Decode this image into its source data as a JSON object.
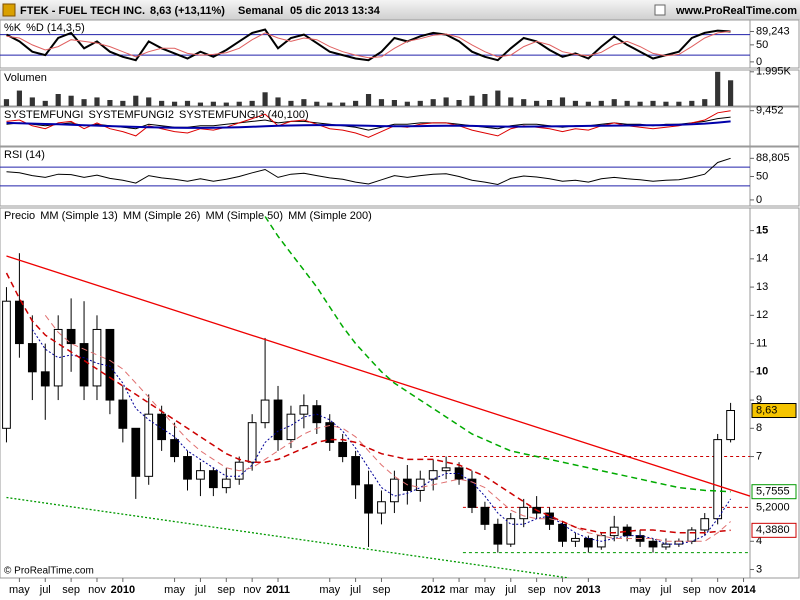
{
  "header": {
    "symbol": "FTEK - FUEL TECH INC.",
    "quote": "8,63 (+13,11%)",
    "period": "Semanal",
    "datetime": "05 dic 2013 13:34",
    "site": "www.ProRealTime.com"
  },
  "footer": "© ProRealTime.com",
  "chart_data": [
    {
      "type": "line",
      "ylim": [
        -18,
        123
      ],
      "yticks": [
        {
          "value": 89.243,
          "label": "89,243"
        },
        50,
        0
      ],
      "hlines": [
        80,
        20
      ],
      "series": [
        {
          "name": "%K",
          "color": "#000000",
          "width": 2,
          "values": [
            80,
            60,
            30,
            20,
            70,
            85,
            40,
            60,
            30,
            15,
            5,
            60,
            40,
            25,
            10,
            30,
            15,
            35,
            60,
            85,
            95,
            40,
            70,
            80,
            55,
            30,
            20,
            10,
            5,
            30,
            70,
            60,
            75,
            85,
            80,
            60,
            30,
            15,
            5,
            40,
            70,
            60,
            35,
            15,
            25,
            10,
            45,
            75,
            50,
            30,
            10,
            20,
            30,
            70,
            85,
            92,
            89.243,
            null
          ]
        },
        {
          "name": "%D (14,3,5)",
          "color": "#e06060",
          "width": 1,
          "values": [
            75,
            70,
            50,
            35,
            45,
            65,
            60,
            55,
            45,
            30,
            15,
            30,
            40,
            40,
            25,
            20,
            22,
            27,
            40,
            65,
            85,
            70,
            60,
            70,
            65,
            45,
            30,
            20,
            12,
            15,
            40,
            60,
            68,
            78,
            82,
            72,
            50,
            30,
            15,
            20,
            45,
            60,
            50,
            30,
            22,
            18,
            28,
            50,
            60,
            45,
            25,
            18,
            22,
            45,
            70,
            85,
            90,
            null
          ]
        }
      ]
    },
    {
      "type": "bar",
      "name": "Volumen",
      "color": "#333333",
      "ylim": [
        0,
        2100
      ],
      "yticks": [
        {
          "value": 1995,
          "label": "1.995K"
        }
      ],
      "values": [
        400,
        900,
        500,
        300,
        700,
        600,
        400,
        500,
        350,
        300,
        600,
        500,
        300,
        250,
        300,
        200,
        250,
        200,
        250,
        300,
        800,
        500,
        300,
        400,
        250,
        200,
        200,
        300,
        700,
        400,
        350,
        250,
        300,
        400,
        500,
        350,
        600,
        700,
        900,
        500,
        400,
        300,
        350,
        500,
        300,
        250,
        300,
        400,
        300,
        250,
        300,
        250,
        250,
        300,
        400,
        1995,
        1500,
        null
      ]
    },
    {
      "type": "line",
      "ylim": [
        -15,
        12
      ],
      "yticks": [
        {
          "value": 9.452,
          "label": "9,452"
        }
      ],
      "series": [
        {
          "name": "SYSTEMFUNGI",
          "color": "#000000",
          "width": 1,
          "values": [
            0,
            1,
            0,
            -1,
            0,
            1,
            -1,
            0,
            -1,
            -2,
            -3,
            0,
            -1,
            -2,
            -2,
            -1,
            -1,
            0,
            1,
            2,
            3,
            1,
            2,
            2,
            1,
            0,
            -1,
            -2,
            -4,
            -2,
            0,
            0,
            1,
            1,
            1,
            0,
            -1,
            -2,
            -3,
            -1,
            0,
            0,
            -1,
            -2,
            -1,
            -1,
            0,
            1,
            0,
            0,
            -1,
            0,
            0,
            1,
            2,
            4,
            5,
            null
          ]
        },
        {
          "name": "SYSTEMFUNGI2",
          "color": "#dd0000",
          "width": 1,
          "values": [
            2,
            3,
            -1,
            -3,
            1,
            2,
            -3,
            1,
            -3,
            -5,
            -8,
            -1,
            -3,
            -5,
            -6,
            -3,
            -4,
            -2,
            1,
            4,
            7,
            -1,
            2,
            3,
            0,
            -3,
            -4,
            -6,
            -9,
            -5,
            -1,
            -2,
            0,
            1,
            1,
            -1,
            -4,
            -6,
            -8,
            -3,
            -1,
            -2,
            -3,
            -5,
            -3,
            -4,
            -1,
            1,
            -1,
            -2,
            -3,
            -2,
            -1,
            1,
            3,
            8,
            9.452,
            null
          ]
        },
        {
          "name": "SYSTEMFUNGI3 (40,100)",
          "color": "#0000aa",
          "width": 2,
          "values": [
            1,
            0.8,
            0.5,
            0.2,
            0,
            -0.3,
            -0.6,
            -0.9,
            -1.2,
            -1.5,
            -1.8,
            -2,
            -2.2,
            -2.4,
            -2.5,
            -2.5,
            -2.4,
            -2.2,
            -2,
            -1.7,
            -1.3,
            -1,
            -0.8,
            -0.6,
            -0.5,
            -0.5,
            -0.6,
            -0.8,
            -1,
            -1.2,
            -1.3,
            -1.3,
            -1.2,
            -1.1,
            -1,
            -1,
            -1.1,
            -1.3,
            -1.5,
            -1.6,
            -1.6,
            -1.5,
            -1.4,
            -1.3,
            -1.2,
            -1.1,
            -1,
            -0.9,
            -0.8,
            -0.7,
            -0.6,
            -0.5,
            -0.3,
            0,
            0.5,
            1.2,
            2,
            null
          ]
        }
      ]
    },
    {
      "type": "line",
      "ylim": [
        -13,
        113
      ],
      "yticks": [
        {
          "value": 88.805,
          "label": "88,805"
        },
        50,
        0
      ],
      "hlines": [
        70,
        30
      ],
      "series": [
        {
          "name": "RSI (14)",
          "color": "#000000",
          "width": 1,
          "values": [
            60,
            58,
            52,
            48,
            55,
            54,
            48,
            53,
            46,
            42,
            36,
            52,
            47,
            44,
            40,
            45,
            40,
            44,
            50,
            58,
            65,
            48,
            55,
            57,
            52,
            47,
            44,
            38,
            34,
            43,
            52,
            48,
            52,
            55,
            56,
            50,
            42,
            38,
            33,
            46,
            51,
            49,
            45,
            40,
            42,
            38,
            45,
            48,
            45,
            43,
            40,
            42,
            43,
            48,
            55,
            80,
            88.805,
            null
          ]
        }
      ]
    },
    {
      "type": "candlestick",
      "ylim": [
        2.7,
        15.8
      ],
      "yticks": [
        3,
        4,
        7,
        8,
        9,
        10,
        11,
        12,
        13,
        14,
        15
      ],
      "categories": [
        null,
        "may",
        null,
        "jul",
        null,
        "sep",
        null,
        "nov",
        null,
        "2010",
        null,
        null,
        null,
        "may",
        null,
        "jul",
        null,
        "sep",
        null,
        "nov",
        null,
        "2011",
        null,
        null,
        null,
        "may",
        null,
        "jul",
        null,
        "sep",
        null,
        null,
        null,
        "2012",
        null,
        "mar",
        null,
        "may",
        null,
        "jul",
        null,
        "sep",
        null,
        "nov",
        null,
        "2013",
        null,
        null,
        null,
        "may",
        null,
        "jul",
        null,
        "sep",
        null,
        "nov",
        null,
        "2014"
      ],
      "candles": {
        "name": "Precio",
        "open": [
          8,
          12.5,
          11,
          10,
          9.5,
          11.5,
          11,
          9.5,
          11.5,
          9,
          8,
          6.3,
          8.5,
          7.6,
          7,
          6.2,
          6.5,
          5.9,
          6.2,
          6.8,
          8.2,
          9,
          7.6,
          8.5,
          8.8,
          8.2,
          7.5,
          7,
          6,
          5,
          5.4,
          6.2,
          5.8,
          6.2,
          6.5,
          6.6,
          6.2,
          5.2,
          4.6,
          3.9,
          4.8,
          5.2,
          5,
          4.6,
          4,
          4.1,
          3.8,
          4.2,
          4.5,
          4.2,
          4,
          3.8,
          3.9,
          4,
          4.4,
          4.8,
          7.6,
          null
        ],
        "high": [
          13,
          14.2,
          12,
          11,
          12,
          12.6,
          12.5,
          12,
          11.5,
          9.5,
          8,
          9.2,
          8.8,
          8.2,
          7.2,
          6.8,
          6.6,
          6.6,
          7,
          8.5,
          11.2,
          9.5,
          8.8,
          9.2,
          9,
          8.5,
          7.8,
          7.2,
          6.5,
          5.8,
          6.5,
          6.7,
          6.5,
          6.9,
          7,
          6.8,
          6.5,
          5.4,
          4.8,
          5,
          5.5,
          5.6,
          5.2,
          4.7,
          4.3,
          4.2,
          4.3,
          4.9,
          4.6,
          4.4,
          4.1,
          4.1,
          4.1,
          4.5,
          5,
          7.8,
          8.9,
          null
        ],
        "low": [
          7.5,
          10.5,
          9,
          8.3,
          9,
          10,
          9,
          9,
          8.5,
          7.5,
          5.5,
          6,
          7.2,
          6.8,
          5.8,
          5.6,
          5.6,
          5.7,
          6,
          6.5,
          8,
          7.2,
          7.3,
          8,
          7.8,
          7.2,
          6.8,
          5.5,
          3.8,
          4.6,
          5,
          5.3,
          5.4,
          5.8,
          6.2,
          6,
          5,
          4.4,
          3.6,
          3.8,
          4.5,
          4.8,
          4.4,
          3.8,
          3.8,
          3.6,
          3.7,
          4,
          4,
          3.8,
          3.6,
          3.7,
          3.8,
          3.9,
          4.2,
          4.6,
          7.5,
          null
        ],
        "close": [
          12.5,
          11,
          10,
          9.5,
          11.5,
          11,
          9.5,
          11.5,
          9,
          8,
          6.3,
          8.5,
          7.6,
          7,
          6.2,
          6.5,
          5.9,
          6.2,
          6.8,
          8.2,
          9,
          7.6,
          8.5,
          8.8,
          8.2,
          7.5,
          7,
          6,
          5,
          5.4,
          6.2,
          5.8,
          6.2,
          6.5,
          6.6,
          6.2,
          5.2,
          4.6,
          3.9,
          4.8,
          5.2,
          5,
          4.6,
          4,
          4.1,
          3.8,
          4.2,
          4.5,
          4.2,
          4,
          3.8,
          3.9,
          4,
          4.4,
          4.8,
          7.6,
          8.63,
          null
        ]
      },
      "series": [
        {
          "name": "MM (Simple 13)",
          "color": "#000099",
          "width": 1,
          "style": "dotted",
          "values": [
            null,
            null,
            11.5,
            10.8,
            10.5,
            10.6,
            10.5,
            10.3,
            10.2,
            9.6,
            8.7,
            8.3,
            8,
            7.7,
            7.2,
            6.9,
            6.6,
            6.3,
            6.3,
            6.7,
            7.5,
            7.9,
            8.1,
            8.4,
            8.5,
            8.3,
            7.9,
            7.3,
            6.6,
            5.9,
            5.6,
            5.7,
            5.9,
            6.2,
            6.4,
            6.4,
            6.1,
            5.6,
            5,
            4.6,
            4.6,
            4.8,
            4.9,
            4.6,
            4.3,
            4.1,
            4,
            4.1,
            4.2,
            4.2,
            4.1,
            3.9,
            3.9,
            4,
            4.2,
            4.8,
            5.5,
            null
          ]
        },
        {
          "name": "MM (Simple 26)",
          "color": "#e07070",
          "width": 1,
          "style": "dashed",
          "values": [
            null,
            null,
            null,
            12,
            11.4,
            11,
            10.8,
            10.6,
            10.4,
            10.1,
            9.6,
            9.1,
            8.6,
            8.1,
            7.6,
            7.2,
            6.9,
            6.6,
            6.5,
            6.6,
            6.9,
            7.2,
            7.5,
            7.8,
            8,
            8.1,
            8,
            7.7,
            7.2,
            6.7,
            6.3,
            6,
            5.9,
            6,
            6.1,
            6.2,
            6.1,
            5.9,
            5.5,
            5.1,
            4.9,
            4.8,
            4.8,
            4.7,
            4.5,
            4.3,
            4.2,
            4.1,
            4.1,
            4.1,
            4.1,
            4,
            4,
            4,
            4,
            4.3,
            4.7,
            null
          ]
        },
        {
          "name": "MM (Simple 50)",
          "color": "#cc0000",
          "width": 1.5,
          "style": "dashed",
          "values": [
            13.5,
            12.6,
            11.8,
            11.3,
            11,
            10.7,
            10.4,
            10.1,
            9.8,
            9.5,
            9.2,
            8.9,
            8.6,
            8.3,
            8,
            7.7,
            7.4,
            7.1,
            6.9,
            6.8,
            6.8,
            6.9,
            7.1,
            7.3,
            7.5,
            7.6,
            7.6,
            7.5,
            7.3,
            7.1,
            7,
            6.9,
            6.9,
            6.9,
            6.8,
            6.7,
            6.5,
            6.3,
            6,
            5.7,
            5.4,
            5.1,
            4.9,
            4.7,
            4.5,
            4.4,
            4.3,
            4.3,
            4.35,
            4.4,
            4.4,
            4.35,
            4.3,
            4.3,
            4.3,
            4.35,
            4.388,
            null
          ]
        },
        {
          "name": "MM (Simple 200)",
          "color": "#00aa00",
          "width": 1.5,
          "style": "dashed",
          "values": [
            null,
            null,
            null,
            null,
            null,
            null,
            null,
            null,
            null,
            null,
            null,
            null,
            null,
            null,
            null,
            null,
            null,
            null,
            null,
            null,
            15.5,
            14.8,
            14.2,
            13.6,
            13,
            12.3,
            11.6,
            11,
            10.5,
            10,
            9.6,
            9.3,
            9,
            8.7,
            8.4,
            8.1,
            7.8,
            7.6,
            7.4,
            7.2,
            7.1,
            7,
            6.9,
            6.8,
            6.7,
            6.6,
            6.5,
            6.4,
            6.3,
            6.2,
            6.1,
            6,
            5.9,
            5.85,
            5.8,
            5.78,
            5.7555,
            null
          ]
        }
      ],
      "hlines": [
        {
          "value": 7,
          "from": 32.3,
          "color": "#cc0000"
        },
        {
          "value": 5.2,
          "from": 35.3,
          "color": "#cc0000",
          "label": "5,2000"
        },
        {
          "value": 3.6,
          "from": 35.3,
          "color": "#009900"
        }
      ],
      "trendlines": [
        {
          "from": [
            0,
            14.1
          ],
          "to": [
            57.5,
            5.6
          ],
          "color": "#ee0000",
          "style": "solid"
        },
        {
          "from": [
            0,
            5.55
          ],
          "to": [
            43.5,
            2.7
          ],
          "color": "#009900",
          "style": "dotted"
        }
      ],
      "value_markers": [
        {
          "value": 8.63,
          "label": "8,63",
          "color": "#000000",
          "background": "#f5c400"
        },
        {
          "value": 5.7555,
          "label": "5,7555",
          "color": "#009900",
          "background": "#ffffff"
        },
        {
          "value": 4.388,
          "label": "4,3880",
          "color": "#cc0000",
          "background": "#ffffff"
        }
      ]
    }
  ]
}
